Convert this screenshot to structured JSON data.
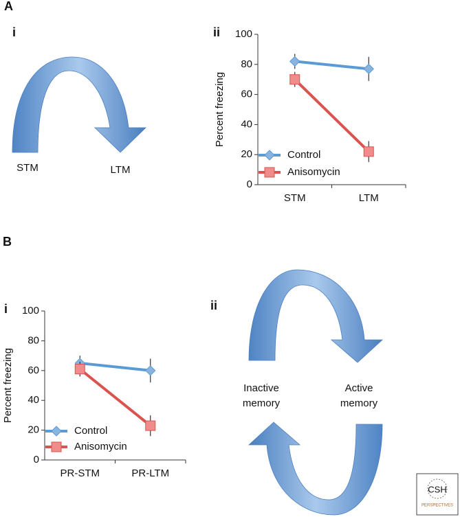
{
  "figure": {
    "panel_a": "A",
    "a_i": "i",
    "a_ii": "ii",
    "stm": "STM",
    "ltm": "LTM",
    "panel_b": "B",
    "b_i": "i",
    "b_ii": "ii",
    "inactive": "Inactive memory",
    "active": "Active memory",
    "logo": "CSH",
    "logo_sub": "PERSPECTIVES"
  },
  "chart_data": [
    {
      "type": "line",
      "y_label": "Percent freezing",
      "categories": [
        "STM",
        "LTM"
      ],
      "series": [
        {
          "name": "Control",
          "color": "#5b9bd5",
          "marker": "diamond",
          "values": [
            82,
            77
          ],
          "errors": [
            5,
            8
          ]
        },
        {
          "name": "Anisomycin",
          "color": "#d9534f",
          "marker": "square",
          "values": [
            70,
            22
          ],
          "errors": [
            5,
            7
          ]
        }
      ],
      "ylim": [
        0,
        100
      ],
      "yticks": [
        0,
        20,
        40,
        60,
        80,
        100
      ]
    },
    {
      "type": "line",
      "y_label": "Percent freezing",
      "categories": [
        "PR-STM",
        "PR-LTM"
      ],
      "series": [
        {
          "name": "Control",
          "color": "#5b9bd5",
          "marker": "diamond",
          "values": [
            65,
            60
          ],
          "errors": [
            5,
            8
          ]
        },
        {
          "name": "Anisomycin",
          "color": "#d9534f",
          "marker": "square",
          "values": [
            61,
            23
          ],
          "errors": [
            5,
            7
          ]
        }
      ],
      "ylim": [
        0,
        100
      ],
      "yticks": [
        0,
        20,
        40,
        60,
        80,
        100
      ]
    }
  ]
}
